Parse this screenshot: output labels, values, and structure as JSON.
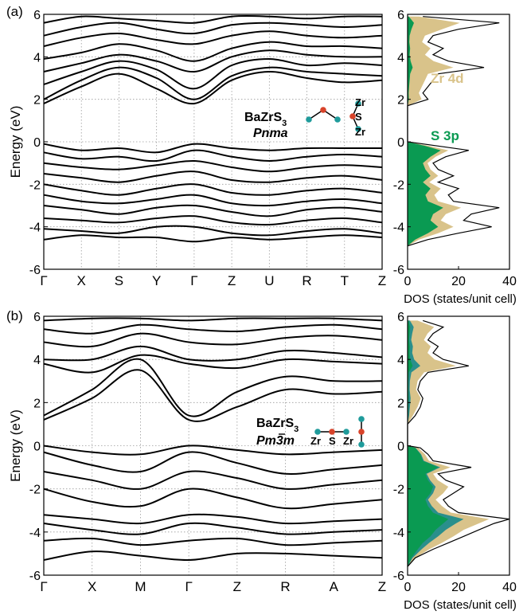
{
  "colors": {
    "zr": "#d9c38a",
    "s": "#0a9a52",
    "teal": "#2a8f8c",
    "band": "#000000",
    "grid": "#9a9a9a",
    "atom_s": "#d8432a",
    "atom_zr": "#1f9b9b"
  },
  "chart_data": [
    {
      "panel": "(a)",
      "type": "line",
      "subtype": "band-structure",
      "ylabel": "Energy (eV)",
      "ylim": [
        -6,
        6
      ],
      "yticks": [
        -6,
        -4,
        -2,
        0,
        2,
        4,
        6
      ],
      "kpoints": [
        "Γ",
        "X",
        "S",
        "Y",
        "Γ",
        "Z",
        "U",
        "R",
        "T",
        "Z"
      ],
      "grid": true,
      "annotation": {
        "formula": "BaZrS",
        "formula_sub": "3",
        "space_group": "Pnma",
        "atom_labels": [
          "Zr",
          "S",
          "Zr"
        ]
      },
      "bands_conduction": [
        [
          1.8,
          2.6,
          3.2,
          2.5,
          1.8,
          2.9,
          3.3,
          3.0,
          2.8,
          2.9
        ],
        [
          2.0,
          2.9,
          3.5,
          3.0,
          2.0,
          3.1,
          3.5,
          3.3,
          3.2,
          3.1
        ],
        [
          2.7,
          3.3,
          3.8,
          3.4,
          2.5,
          3.6,
          3.9,
          3.6,
          3.7,
          3.6
        ],
        [
          3.3,
          3.7,
          4.1,
          3.8,
          3.3,
          4.0,
          4.3,
          4.1,
          4.0,
          4.0
        ],
        [
          3.9,
          4.2,
          4.6,
          4.3,
          3.8,
          4.4,
          4.7,
          4.5,
          4.5,
          4.4
        ],
        [
          4.5,
          4.9,
          5.1,
          4.8,
          4.6,
          5.0,
          5.2,
          5.0,
          4.9,
          5.0
        ],
        [
          5.0,
          5.4,
          5.6,
          5.3,
          5.1,
          5.5,
          5.6,
          5.5,
          5.4,
          5.5
        ],
        [
          5.6,
          5.9,
          5.8,
          5.7,
          5.6,
          5.9,
          5.9,
          5.8,
          5.9,
          5.9
        ]
      ],
      "bands_valence": [
        [
          -0.1,
          -0.4,
          -0.3,
          -0.5,
          -0.1,
          -0.3,
          -0.4,
          -0.3,
          -0.3,
          -0.3
        ],
        [
          -0.5,
          -0.8,
          -0.7,
          -0.9,
          -0.4,
          -0.7,
          -0.9,
          -0.7,
          -0.6,
          -0.7
        ],
        [
          -1.0,
          -1.2,
          -1.3,
          -1.1,
          -0.9,
          -1.2,
          -1.4,
          -1.2,
          -1.1,
          -1.2
        ],
        [
          -1.5,
          -1.7,
          -1.9,
          -1.6,
          -1.4,
          -1.8,
          -1.9,
          -1.7,
          -1.6,
          -1.8
        ],
        [
          -2.0,
          -2.3,
          -2.5,
          -2.2,
          -2.0,
          -2.4,
          -2.5,
          -2.3,
          -2.2,
          -2.4
        ],
        [
          -2.5,
          -2.8,
          -2.9,
          -2.7,
          -2.5,
          -2.9,
          -3.0,
          -2.8,
          -2.7,
          -2.9
        ],
        [
          -3.0,
          -3.2,
          -3.4,
          -3.1,
          -3.0,
          -3.3,
          -3.5,
          -3.2,
          -3.1,
          -3.3
        ],
        [
          -3.6,
          -3.7,
          -3.8,
          -3.6,
          -3.5,
          -3.8,
          -3.9,
          -3.7,
          -3.6,
          -3.8
        ],
        [
          -4.1,
          -4.2,
          -4.3,
          -4.0,
          -4.0,
          -4.3,
          -4.4,
          -4.2,
          -4.1,
          -4.3
        ],
        [
          -4.6,
          -4.4,
          -4.5,
          -4.5,
          -4.7,
          -4.5,
          -4.6,
          -4.5,
          -4.4,
          -4.5
        ]
      ]
    },
    {
      "panel": "(a)",
      "type": "area",
      "subtype": "density-of-states",
      "xlabel": "DOS (states/unit cell)",
      "xlim": [
        0,
        40
      ],
      "xticks": [
        0,
        20,
        40
      ],
      "ylim": [
        -6,
        6
      ],
      "yticks": [
        -6,
        -4,
        -2,
        0,
        2,
        4,
        6
      ],
      "labels": [
        "Zr 4d",
        "S 3p"
      ],
      "energy": [
        -4.9,
        -4.6,
        -4.3,
        -4.0,
        -3.7,
        -3.4,
        -3.1,
        -2.8,
        -2.5,
        -2.2,
        -1.9,
        -1.6,
        -1.3,
        -1.0,
        -0.7,
        -0.4,
        -0.2,
        0.0,
        1.7,
        2.0,
        2.3,
        2.6,
        2.9,
        3.2,
        3.5,
        3.8,
        4.1,
        4.4,
        4.7,
        5.0,
        5.3,
        5.6,
        5.9
      ],
      "total": [
        0,
        8,
        20,
        33,
        22,
        25,
        36,
        18,
        16,
        20,
        12,
        18,
        12,
        10,
        15,
        24,
        12,
        0,
        0,
        8,
        6,
        8,
        10,
        12,
        30,
        16,
        10,
        14,
        8,
        10,
        20,
        36,
        6
      ],
      "s3p": [
        0,
        3,
        8,
        12,
        9,
        10,
        14,
        8,
        7,
        9,
        6,
        9,
        7,
        6,
        9,
        13,
        7,
        0,
        0,
        0.5,
        0.4,
        0.6,
        0.8,
        1.0,
        2.0,
        1.2,
        0.8,
        1.0,
        0.7,
        0.8,
        1.5,
        2.5,
        0.5
      ],
      "zr4d": [
        0,
        1.5,
        4,
        6,
        4,
        5,
        7,
        4,
        3.5,
        4,
        2.5,
        3,
        2,
        1.8,
        2,
        3,
        1.5,
        0,
        0,
        5,
        4,
        5,
        6,
        7,
        16,
        9,
        6,
        8,
        5,
        6,
        12,
        18,
        4
      ]
    },
    {
      "panel": "(b)",
      "type": "line",
      "subtype": "band-structure",
      "ylabel": "Energy (eV)",
      "ylim": [
        -6,
        6
      ],
      "yticks": [
        -6,
        -4,
        -2,
        0,
        2,
        4,
        6
      ],
      "kpoints": [
        "Γ",
        "X",
        "M",
        "Γ",
        "Z",
        "R",
        "A",
        "Z"
      ],
      "grid": true,
      "annotation": {
        "formula": "BaZrS",
        "formula_sub": "3",
        "space_group": "Pm3m",
        "atom_labels": [
          "Zr",
          "S",
          "Zr"
        ]
      },
      "bands_conduction": [
        [
          1.2,
          2.2,
          3.5,
          1.2,
          1.8,
          2.6,
          2.4,
          2.5
        ],
        [
          1.4,
          2.6,
          4.0,
          1.4,
          2.5,
          3.2,
          3.0,
          3.0
        ],
        [
          3.8,
          3.4,
          4.2,
          3.8,
          3.6,
          4.0,
          3.9,
          3.8
        ],
        [
          4.0,
          4.0,
          4.6,
          4.0,
          4.0,
          4.4,
          4.3,
          4.1
        ],
        [
          4.8,
          4.6,
          5.2,
          4.8,
          4.7,
          5.0,
          5.1,
          4.9
        ],
        [
          5.4,
          5.2,
          5.6,
          5.4,
          5.3,
          5.5,
          5.6,
          5.4
        ],
        [
          5.8,
          5.9,
          5.9,
          5.8,
          5.9,
          5.9,
          5.9,
          5.8
        ]
      ],
      "bands_valence": [
        [
          0.0,
          -0.3,
          -0.4,
          0.0,
          -0.2,
          -0.4,
          -0.3,
          -0.2
        ],
        [
          -0.3,
          -0.9,
          -1.2,
          -0.3,
          -0.8,
          -1.3,
          -1.1,
          -0.9
        ],
        [
          -1.2,
          -1.6,
          -2.0,
          -1.2,
          -1.5,
          -2.0,
          -1.8,
          -1.6
        ],
        [
          -2.0,
          -2.6,
          -2.8,
          -2.0,
          -2.4,
          -2.9,
          -2.7,
          -2.5
        ],
        [
          -3.2,
          -3.4,
          -3.6,
          -3.2,
          -3.3,
          -3.6,
          -3.5,
          -3.4
        ],
        [
          -3.6,
          -3.9,
          -4.1,
          -3.6,
          -3.8,
          -4.1,
          -4.0,
          -3.9
        ],
        [
          -4.4,
          -4.3,
          -4.6,
          -4.4,
          -4.3,
          -4.6,
          -4.5,
          -4.4
        ],
        [
          -5.3,
          -4.9,
          -5.1,
          -5.3,
          -5.0,
          -5.0,
          -5.1,
          -5.2
        ]
      ]
    },
    {
      "panel": "(b)",
      "type": "area",
      "subtype": "density-of-states",
      "xlabel": "DOS (states/unit cell)",
      "xlim": [
        0,
        40
      ],
      "xticks": [
        0,
        20,
        40
      ],
      "ylim": [
        -6,
        6
      ],
      "yticks": [
        -6,
        -4,
        -2,
        0,
        2,
        4,
        6
      ],
      "energy": [
        -5.6,
        -5.2,
        -4.8,
        -4.5,
        -4.2,
        -3.9,
        -3.6,
        -3.4,
        -3.1,
        -2.8,
        -2.5,
        -2.2,
        -1.9,
        -1.6,
        -1.3,
        -1.0,
        -0.7,
        -0.4,
        -0.1,
        0.0,
        1.0,
        1.4,
        1.8,
        2.2,
        2.6,
        3.0,
        3.4,
        3.7,
        4.0,
        4.3,
        4.6,
        4.9,
        5.2,
        5.5,
        5.8
      ],
      "total": [
        0,
        3,
        10,
        16,
        22,
        28,
        34,
        40,
        20,
        16,
        14,
        18,
        22,
        15,
        12,
        25,
        10,
        8,
        5,
        0,
        0,
        3,
        5,
        6,
        4,
        5,
        8,
        24,
        14,
        10,
        12,
        8,
        10,
        14,
        6
      ],
      "s3p": [
        0,
        1.5,
        4,
        6,
        9,
        11,
        14,
        16,
        10,
        8,
        7,
        9,
        10,
        8,
        7,
        12,
        6,
        5,
        3,
        0,
        0,
        0.2,
        0.3,
        0.4,
        0.3,
        0.3,
        0.5,
        2,
        1,
        0.8,
        0.9,
        0.6,
        0.8,
        1,
        0.4
      ],
      "zr4d": [
        0,
        1,
        3,
        5,
        6,
        7,
        9,
        10,
        5,
        4,
        3,
        4,
        5,
        3,
        2.5,
        4,
        2,
        1.5,
        1,
        0,
        0,
        1.5,
        3,
        4,
        2.5,
        3,
        5,
        14,
        8,
        6,
        7,
        5,
        6,
        8,
        3
      ],
      "teal": [
        0,
        0.5,
        1.5,
        2.5,
        3,
        4,
        5,
        6,
        2,
        1.5,
        1,
        1,
        1,
        0.8,
        0.5,
        0.8,
        0.4,
        0.3,
        0.2,
        0,
        0,
        0.4,
        0.6,
        0.8,
        0.5,
        0.6,
        1,
        3,
        1.6,
        1,
        1.2,
        0.8,
        1,
        1.4,
        0.5
      ]
    }
  ],
  "panel_labels": [
    "(a)",
    "(b)"
  ]
}
